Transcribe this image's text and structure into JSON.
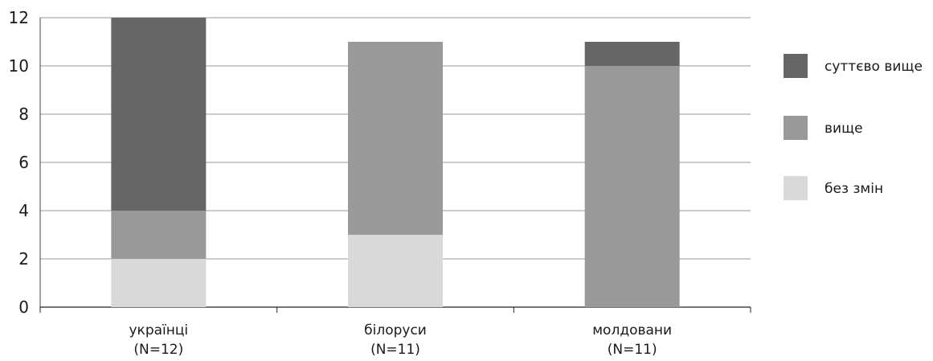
{
  "chart_data": {
    "type": "bar",
    "stacked": true,
    "categories": [
      [
        "українці",
        "(N=12)"
      ],
      [
        "білоруси",
        "(N=11)"
      ],
      [
        "молдовани",
        "(N=11)"
      ]
    ],
    "series": [
      {
        "name": "без змін",
        "color": "#d9d9d9",
        "values": [
          2,
          3,
          0
        ]
      },
      {
        "name": "вище",
        "color": "#999999",
        "values": [
          2,
          8,
          10
        ]
      },
      {
        "name": "суттєво вище",
        "color": "#666666",
        "values": [
          8,
          0,
          1
        ]
      }
    ],
    "legend_order": [
      "суттєво вище",
      "вище",
      "без змін"
    ],
    "ylim": [
      0,
      12
    ],
    "yticks": [
      0,
      2,
      4,
      6,
      8,
      10,
      12
    ],
    "grid": true,
    "legend_position": "right",
    "title": "",
    "xlabel": "",
    "ylabel": ""
  }
}
